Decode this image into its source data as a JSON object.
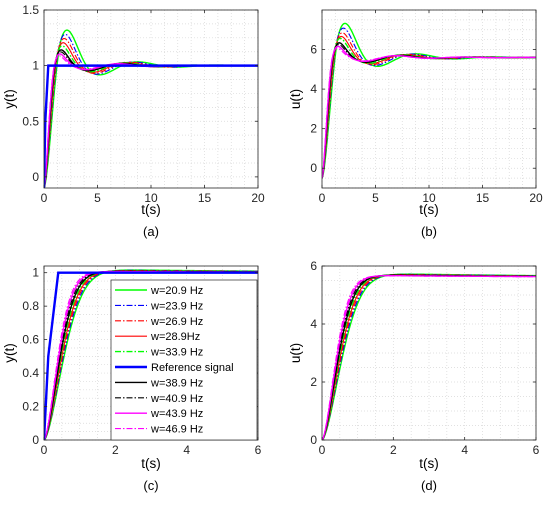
{
  "colors": {
    "green": "#00ff00",
    "blue": "#0000ff",
    "red": "#ff0000",
    "black": "#000000",
    "magenta": "#ff00ff",
    "grid": "#d7d7d7"
  },
  "chart_data": [
    {
      "panel": "a",
      "type": "line",
      "caption": "(a)",
      "xlabel": "t(s)",
      "ylabel": "y(t)",
      "xlim": [
        0,
        20
      ],
      "ylim": [
        -0.1,
        1.5
      ],
      "xticks": [
        0,
        5,
        10,
        15,
        20
      ],
      "yticks": [
        0,
        0.5,
        1,
        1.5
      ],
      "grid": true,
      "response": {
        "final": 1.0,
        "start": -0.1
      },
      "series": [
        {
          "color": "#00ff00",
          "dash": "",
          "width": 1.4,
          "overshoot": 1.37,
          "peak_time": 1.8,
          "period": 7.3
        },
        {
          "color": "#0000ff",
          "dash": "6,2,1.5,2",
          "width": 1.1,
          "overshoot": 1.33,
          "peak_time": 1.65,
          "period": 7.0
        },
        {
          "color": "#ff0000",
          "dash": "6,2,1.5,2",
          "width": 1.1,
          "overshoot": 1.29,
          "peak_time": 1.55,
          "period": 6.8
        },
        {
          "color": "#ff0000",
          "dash": "",
          "width": 1.1,
          "overshoot": 1.25,
          "peak_time": 1.45,
          "period": 6.6
        },
        {
          "color": "#00ff00",
          "dash": "6,2,1.5,2",
          "width": 1.4,
          "overshoot": 1.22,
          "peak_time": 1.35,
          "period": 6.5
        },
        {
          "color": "#000000",
          "dash": "",
          "width": 1.4,
          "overshoot": 1.18,
          "peak_time": 1.25,
          "period": 6.3
        },
        {
          "color": "#000000",
          "dash": "6,2,1.5,2",
          "width": 1.1,
          "overshoot": 1.16,
          "peak_time": 1.2,
          "period": 6.2
        },
        {
          "color": "#ff00ff",
          "dash": "",
          "width": 1.4,
          "overshoot": 1.14,
          "peak_time": 1.12,
          "period": 6.1
        },
        {
          "color": "#ff00ff",
          "dash": "6,2,1.5,2",
          "width": 1.1,
          "overshoot": 1.12,
          "peak_time": 1.05,
          "period": 6.0
        }
      ],
      "reference": {
        "color": "#0000ff",
        "value": 1.0,
        "rise": 0.4,
        "width": 2.4
      }
    },
    {
      "panel": "b",
      "type": "line",
      "caption": "(b)",
      "xlabel": "t(s)",
      "ylabel": "u(t)",
      "xlim": [
        0,
        20
      ],
      "ylim": [
        -1,
        8
      ],
      "xticks": [
        0,
        5,
        10,
        15,
        20
      ],
      "yticks": [
        0,
        2,
        4,
        6
      ],
      "grid": true,
      "response": {
        "final": 5.6,
        "start": -0.5
      },
      "series": [
        {
          "color": "#00ff00",
          "dash": "",
          "width": 1.4,
          "overshoot": 7.6,
          "peak_time": 1.8,
          "period": 7.3
        },
        {
          "color": "#0000ff",
          "dash": "6,2,1.5,2",
          "width": 1.1,
          "overshoot": 7.35,
          "peak_time": 1.65,
          "period": 7.0
        },
        {
          "color": "#ff0000",
          "dash": "6,2,1.5,2",
          "width": 1.1,
          "overshoot": 7.1,
          "peak_time": 1.55,
          "period": 6.8
        },
        {
          "color": "#ff0000",
          "dash": "",
          "width": 1.1,
          "overshoot": 6.9,
          "peak_time": 1.45,
          "period": 6.6
        },
        {
          "color": "#00ff00",
          "dash": "6,2,1.5,2",
          "width": 1.4,
          "overshoot": 6.8,
          "peak_time": 1.35,
          "period": 6.5
        },
        {
          "color": "#000000",
          "dash": "",
          "width": 1.4,
          "overshoot": 6.55,
          "peak_time": 1.25,
          "period": 6.3
        },
        {
          "color": "#000000",
          "dash": "6,2,1.5,2",
          "width": 1.1,
          "overshoot": 6.45,
          "peak_time": 1.2,
          "period": 6.2
        },
        {
          "color": "#ff00ff",
          "dash": "",
          "width": 1.4,
          "overshoot": 6.35,
          "peak_time": 1.12,
          "period": 6.1
        },
        {
          "color": "#ff00ff",
          "dash": "6,2,1.5,2",
          "width": 1.1,
          "overshoot": 6.25,
          "peak_time": 1.05,
          "period": 6.0
        }
      ]
    },
    {
      "panel": "c",
      "type": "line",
      "caption": "(c)",
      "xlabel": "t(s)",
      "ylabel": "y(t)",
      "xlim": [
        0,
        6
      ],
      "ylim": [
        0,
        1.04
      ],
      "xticks": [
        0,
        2,
        4,
        6
      ],
      "yticks": [
        0,
        0.2,
        0.4,
        0.6,
        0.8,
        1
      ],
      "grid": true,
      "response": {
        "final": 1.0,
        "start": 0
      },
      "series": [
        {
          "color": "#00ff00",
          "dash": "",
          "width": 1.4,
          "overshoot": 1.02,
          "peak_time": 1.3,
          "period": 30
        },
        {
          "color": "#0000ff",
          "dash": "6,2,1.5,2",
          "width": 1.1,
          "overshoot": 1.018,
          "peak_time": 1.25,
          "period": 30
        },
        {
          "color": "#ff0000",
          "dash": "6,2,1.5,2",
          "width": 1.1,
          "overshoot": 1.016,
          "peak_time": 1.2,
          "period": 30
        },
        {
          "color": "#ff0000",
          "dash": "",
          "width": 1.1,
          "overshoot": 1.014,
          "peak_time": 1.15,
          "period": 30
        },
        {
          "color": "#00ff00",
          "dash": "6,2,1.5,2",
          "width": 1.4,
          "overshoot": 1.012,
          "peak_time": 1.1,
          "period": 30
        },
        {
          "color": "#000000",
          "dash": "",
          "width": 1.4,
          "overshoot": 1.01,
          "peak_time": 1.05,
          "period": 30
        },
        {
          "color": "#000000",
          "dash": "6,2,1.5,2",
          "width": 1.1,
          "overshoot": 1.009,
          "peak_time": 1.0,
          "period": 30
        },
        {
          "color": "#ff00ff",
          "dash": "",
          "width": 1.4,
          "overshoot": 1.008,
          "peak_time": 0.95,
          "period": 30
        },
        {
          "color": "#ff00ff",
          "dash": "6,2,1.5,2",
          "width": 1.1,
          "overshoot": 1.007,
          "peak_time": 0.9,
          "period": 30
        }
      ],
      "reference": {
        "color": "#0000ff",
        "value": 1.0,
        "rise": 0.4,
        "width": 2.4
      },
      "legend": {
        "placement": "center",
        "entries": [
          {
            "label": "w=20.9 Hz",
            "color": "#00ff00",
            "dash": "",
            "width": 1.4
          },
          {
            "label": "w=23.9 Hz",
            "color": "#0000ff",
            "dash": "6,2,1.5,2",
            "width": 1.1
          },
          {
            "label": "w=26.9 Hz",
            "color": "#ff0000",
            "dash": "6,2,1.5,2",
            "width": 1.1
          },
          {
            "label": "w=28.9Hz",
            "color": "#ff0000",
            "dash": "",
            "width": 1.2
          },
          {
            "label": "w=33.9 Hz",
            "color": "#00ff00",
            "dash": "6,2,1.5,2",
            "width": 1.4
          },
          {
            "label": "Reference signal",
            "color": "#0000ff",
            "dash": "",
            "width": 2.6
          },
          {
            "label": "w=38.9 Hz",
            "color": "#000000",
            "dash": "",
            "width": 1.4
          },
          {
            "label": "w=40.9 Hz",
            "color": "#000000",
            "dash": "6,2,1.5,2",
            "width": 1.1
          },
          {
            "label": "w=43.9 Hz",
            "color": "#ff00ff",
            "dash": "",
            "width": 1.4
          },
          {
            "label": "w=46.9 Hz",
            "color": "#ff00ff",
            "dash": "6,2,1.5,2",
            "width": 1.1
          }
        ]
      }
    },
    {
      "panel": "d",
      "type": "line",
      "caption": "(d)",
      "xlabel": "t(s)",
      "ylabel": "u(t)",
      "xlim": [
        0,
        6
      ],
      "ylim": [
        0,
        6
      ],
      "xticks": [
        0,
        2,
        4,
        6
      ],
      "yticks": [
        0,
        2,
        4,
        6
      ],
      "grid": true,
      "response": {
        "final": 5.6,
        "start": 0
      },
      "series": [
        {
          "color": "#00ff00",
          "dash": "",
          "width": 1.4,
          "overshoot": 5.75,
          "peak_time": 1.3,
          "period": 30
        },
        {
          "color": "#0000ff",
          "dash": "6,2,1.5,2",
          "width": 1.1,
          "overshoot": 5.74,
          "peak_time": 1.25,
          "period": 30
        },
        {
          "color": "#ff0000",
          "dash": "6,2,1.5,2",
          "width": 1.1,
          "overshoot": 5.73,
          "peak_time": 1.2,
          "period": 30
        },
        {
          "color": "#ff0000",
          "dash": "",
          "width": 1.1,
          "overshoot": 5.72,
          "peak_time": 1.15,
          "period": 30
        },
        {
          "color": "#00ff00",
          "dash": "6,2,1.5,2",
          "width": 1.4,
          "overshoot": 5.71,
          "peak_time": 1.1,
          "period": 30
        },
        {
          "color": "#000000",
          "dash": "",
          "width": 1.4,
          "overshoot": 5.7,
          "peak_time": 1.05,
          "period": 30
        },
        {
          "color": "#000000",
          "dash": "6,2,1.5,2",
          "width": 1.1,
          "overshoot": 5.69,
          "peak_time": 1.0,
          "period": 30
        },
        {
          "color": "#ff00ff",
          "dash": "",
          "width": 1.4,
          "overshoot": 5.68,
          "peak_time": 0.95,
          "period": 30
        },
        {
          "color": "#ff00ff",
          "dash": "6,2,1.5,2",
          "width": 1.1,
          "overshoot": 5.67,
          "peak_time": 0.9,
          "period": 30
        }
      ]
    }
  ]
}
